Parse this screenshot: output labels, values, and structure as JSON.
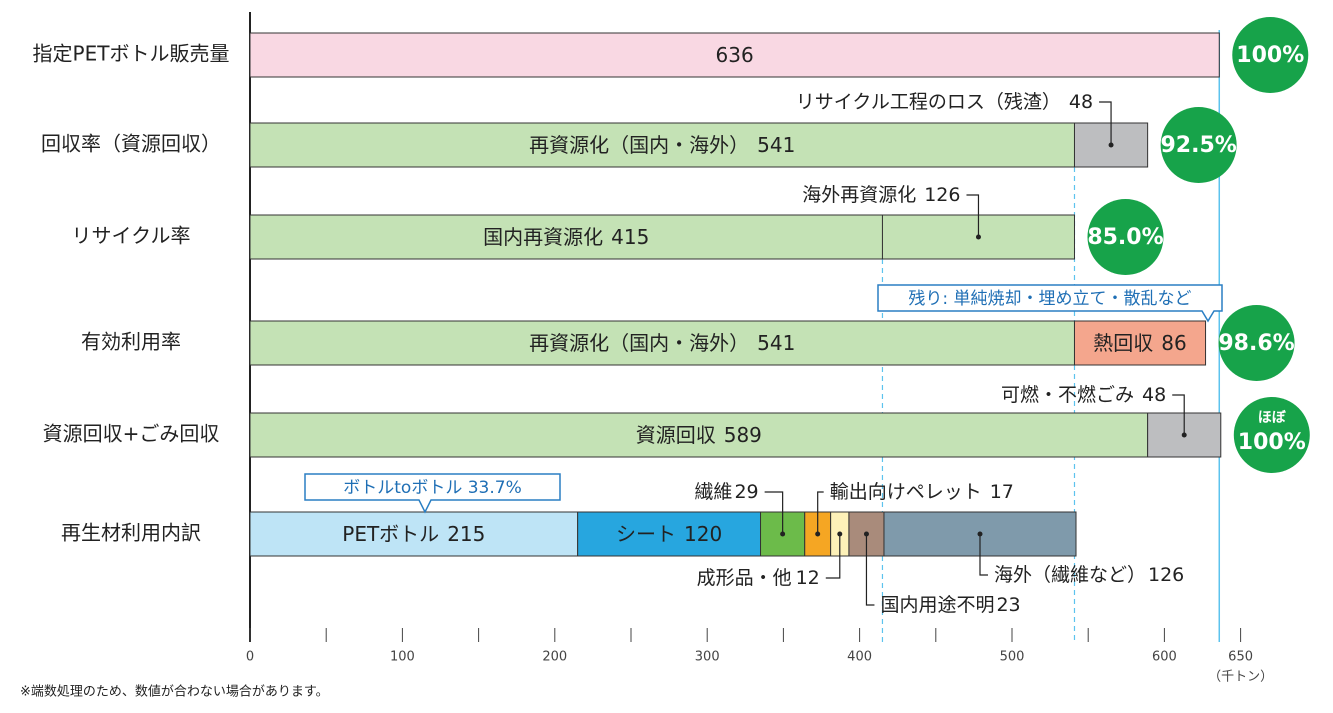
{
  "chart_data": {
    "type": "stacked-bar",
    "orientation": "horizontal",
    "categories": [
      "指定PETボトル販売量",
      "回収率（資源回収）",
      "リサイクル率",
      "有効利用率",
      "資源回収+ごみ回収",
      "再生材利用内訳"
    ],
    "rows": [
      {
        "segments": [
          {
            "value": 636,
            "color": "#f9d8e3"
          }
        ],
        "badge": "100%"
      },
      {
        "segments": [
          {
            "name": "再資源化（国内・海外）",
            "value": 541,
            "color": "#c4e2b5"
          },
          {
            "name": "リサイクル工程のロス（残渣）",
            "value": 48,
            "color": "#bdbec0"
          }
        ],
        "badge": "92.5%"
      },
      {
        "segments": [
          {
            "name": "国内再資源化",
            "value": 415,
            "color": "#c4e2b5"
          },
          {
            "name": "海外再資源化",
            "value": 126,
            "color": "#c4e2b5"
          }
        ],
        "badge": "85.0%"
      },
      {
        "segments": [
          {
            "name": "再資源化（国内・海外）",
            "value": 541,
            "color": "#c4e2b5"
          },
          {
            "name": "熱回収",
            "value": 86,
            "color": "#f4a68d"
          }
        ],
        "badge": "98.6%"
      },
      {
        "segments": [
          {
            "name": "資源回収",
            "value": 589,
            "color": "#c4e2b5"
          },
          {
            "name": "可燃・不燃ごみ",
            "value": 48,
            "color": "#bdbec0"
          }
        ],
        "badge_note": "ほぼ",
        "badge": "100%"
      },
      {
        "segments": [
          {
            "name": "PETボトル",
            "value": 215,
            "color": "#bee4f6"
          },
          {
            "name": "シート",
            "value": 120,
            "color": "#27a6df"
          },
          {
            "name": "繊維",
            "value": 29,
            "color": "#6cbb4a"
          },
          {
            "name": "輸出向けペレット",
            "value": 17,
            "color": "#f5a623"
          },
          {
            "name": "成形品・他",
            "value": 12,
            "color": "#fdf1b8"
          },
          {
            "name": "国内用途不明",
            "value": 23,
            "color": "#a98b7b"
          },
          {
            "name": "海外（繊維など）",
            "value": 126,
            "color": "#7f9aab"
          }
        ]
      }
    ],
    "callouts": [
      "ボトルtoボトル 33.7%",
      "残り: 単純焼却・埋め立て・散乱など"
    ],
    "xlim": [
      0,
      650
    ],
    "xticks": [
      0,
      100,
      200,
      300,
      400,
      500,
      600,
      650
    ],
    "xminorticks": [
      50,
      150,
      250,
      350,
      450,
      550
    ],
    "x_unit": "（千トン）",
    "badge_color": "#17a34a",
    "footnote": "※端数処理のため、数値が合わない場合があります。"
  }
}
